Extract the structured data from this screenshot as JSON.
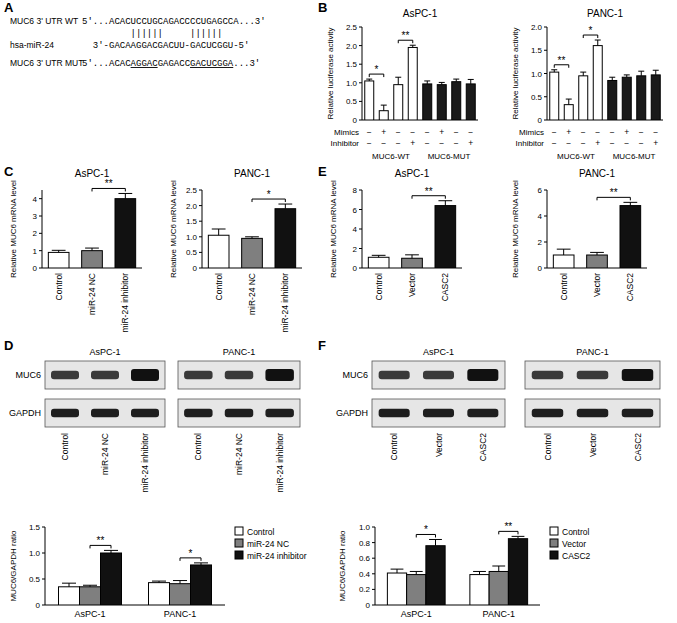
{
  "panel_labels": [
    "A",
    "B",
    "C",
    "D",
    "E",
    "F"
  ],
  "sequence": {
    "wt_label": "MUC6 3' UTR WT",
    "wt": "5'...ACACUCCUGCAGACCCCUGAGCCA...3'",
    "pairing": "       ||||||     ||||||",
    "mir_label": "hsa-miR-24",
    "mir": "3'-GACAAGGACGACUU-GACUCGGU-5'",
    "mut_label": "MUC6 3' UTR MUT",
    "mut": [
      {
        "text": "5'...ACAC"
      },
      {
        "text": "AGGAC",
        "underline": true
      },
      {
        "text": "GAGACC"
      },
      {
        "text": "GACUCGGA",
        "underline": true
      },
      {
        "text": "...3'"
      }
    ]
  },
  "blots": [
    {
      "rows": [
        "MUC6",
        "GAPDH"
      ],
      "cell_lines": [
        {
          "name": "AsPC-1",
          "lanes": [
            "Control",
            "miR-24 NC",
            "miR-24 inhibitor"
          ]
        },
        {
          "name": "PANC-1",
          "lanes": [
            "Control",
            "miR-24 NC",
            "miR-24 inhibitor"
          ]
        }
      ]
    },
    {
      "rows": [
        "MUC6",
        "GAPDH"
      ],
      "cell_lines": [
        {
          "name": "AsPC-1",
          "lanes": [
            "Control",
            "Vector",
            "CASC2"
          ]
        },
        {
          "name": "PANC-1",
          "lanes": [
            "Control",
            "Vector",
            "CASC2"
          ]
        }
      ]
    }
  ],
  "chart_data": [
    {
      "type": "bar",
      "title": "AsPC-1",
      "y_label": "Relative luciferase activity",
      "categories": [
        null,
        null,
        null,
        null,
        null,
        null,
        null,
        null
      ],
      "values": [
        1.05,
        0.25,
        0.95,
        1.95,
        0.97,
        0.95,
        1.03,
        0.97
      ],
      "errors": [
        0.05,
        0.15,
        0.2,
        0.06,
        0.08,
        0.06,
        0.07,
        0.12
      ],
      "colors": [
        "#ffffff",
        "#ffffff",
        "#ffffff",
        "#ffffff",
        "#1a1a1a",
        "#1a1a1a",
        "#1a1a1a",
        "#1a1a1a"
      ],
      "ylim": [
        0,
        2.5
      ],
      "yticks": [
        0,
        0.5,
        {
          "value": 1,
          "label": "1.0"
        },
        1.5,
        {
          "value": 2,
          "label": "2.0"
        },
        2.5
      ],
      "annotations": [
        {
          "text": "*",
          "bars": [
            0,
            1
          ]
        },
        {
          "text": "**",
          "bars": [
            2,
            3
          ]
        }
      ],
      "conditions": [
        {
          "label": "Mimics",
          "marks": [
            "−",
            "+",
            "−",
            "−",
            "−",
            "+",
            "−",
            "−"
          ]
        },
        {
          "label": "Inhibitor",
          "marks": [
            "−",
            "−",
            "−",
            "+",
            "−",
            "−",
            "−",
            "+"
          ]
        }
      ],
      "groups": [
        {
          "label": "MUC6-WT",
          "bars": [
            0,
            3
          ]
        },
        {
          "label": "MUC6-MUT",
          "bars": [
            4,
            7
          ]
        }
      ]
    },
    {
      "type": "bar",
      "title": "PANC-1",
      "y_label": "Relative luciferase activity",
      "categories": [
        null,
        null,
        null,
        null,
        null,
        null,
        null,
        null
      ],
      "values": [
        1.03,
        0.33,
        0.95,
        1.6,
        0.85,
        0.92,
        0.95,
        0.97
      ],
      "errors": [
        0.05,
        0.12,
        0.08,
        0.12,
        0.07,
        0.05,
        0.1,
        0.1
      ],
      "colors": [
        "#ffffff",
        "#ffffff",
        "#ffffff",
        "#ffffff",
        "#1a1a1a",
        "#1a1a1a",
        "#1a1a1a",
        "#1a1a1a"
      ],
      "ylim": [
        0,
        2
      ],
      "yticks": [
        0,
        0.5,
        {
          "value": 1,
          "label": "1.0"
        },
        1.5,
        {
          "value": 2,
          "label": "2.0"
        }
      ],
      "annotations": [
        {
          "text": "**",
          "bars": [
            0,
            1
          ]
        },
        {
          "text": "*",
          "bars": [
            2,
            3
          ]
        }
      ],
      "conditions": [
        {
          "label": "Mimics",
          "marks": [
            "−",
            "+",
            "−",
            "−",
            "−",
            "+",
            "−",
            "−"
          ]
        },
        {
          "label": "Inhibitor",
          "marks": [
            "−",
            "−",
            "−",
            "+",
            "−",
            "−",
            "−",
            "+"
          ]
        }
      ],
      "groups": [
        {
          "label": "MUC6-WT",
          "bars": [
            0,
            3
          ]
        },
        {
          "label": "MUC6-MUT",
          "bars": [
            4,
            7
          ]
        }
      ]
    },
    {
      "type": "bar",
      "title": "AsPC-1",
      "y_label": "Relative MUC6 mRNA level",
      "categories": [
        "Control",
        "miR-24 NC",
        "miR-24 inhibitor"
      ],
      "values": [
        0.9,
        1.0,
        4.0
      ],
      "errors": [
        0.12,
        0.15,
        0.3
      ],
      "colors": [
        "#ffffff",
        "#7f7f7f",
        "#111111"
      ],
      "ylim": [
        0,
        4.5
      ],
      "yticks": [
        0,
        1,
        2,
        3,
        4
      ],
      "annotations": [
        {
          "text": "**",
          "bars": [
            1,
            2
          ]
        }
      ]
    },
    {
      "type": "bar",
      "title": "PANC-1",
      "y_label": "Relative MUC6 mRNA level",
      "categories": [
        "Control",
        "miR-24 NC",
        "miR-24 inhibitor"
      ],
      "values": [
        1.05,
        0.95,
        1.9
      ],
      "errors": [
        0.2,
        0.05,
        0.15
      ],
      "colors": [
        "#ffffff",
        "#7f7f7f",
        "#111111"
      ],
      "ylim": [
        0,
        2.5
      ],
      "yticks": [
        0,
        0.5,
        {
          "value": 1,
          "label": "1.0"
        },
        1.5,
        {
          "value": 2,
          "label": "2.0"
        },
        2.5
      ],
      "annotations": [
        {
          "text": "*",
          "bars": [
            1,
            2
          ]
        }
      ]
    },
    {
      "type": "bar",
      "y_label": "MUC6/GAPDH ratio",
      "categories": [
        "AsPC-1",
        "PANC-1"
      ],
      "series": [
        {
          "name": "Control",
          "color": "#ffffff",
          "values": [
            0.35,
            0.43
          ],
          "errors": [
            0.07,
            0.03
          ]
        },
        {
          "name": "miR-24 NC",
          "color": "#7f7f7f",
          "values": [
            0.35,
            0.41
          ],
          "errors": [
            0.03,
            0.06
          ]
        },
        {
          "name": "miR-24 inhibitor",
          "color": "#111111",
          "values": [
            1.0,
            0.77
          ],
          "errors": [
            0.05,
            0.04
          ]
        }
      ],
      "ylim": [
        0,
        1.5
      ],
      "yticks": [
        0,
        0.5,
        {
          "value": 1,
          "label": "1.0"
        },
        1.5
      ],
      "legend": "right",
      "annotations": [
        {
          "text": "**",
          "category": 0,
          "series": [
            1,
            2
          ]
        },
        {
          "text": "*",
          "category": 1,
          "series": [
            1,
            2
          ]
        }
      ]
    },
    {
      "type": "bar",
      "title": "AsPC-1",
      "y_label": "Relative MUC6 mRNA level",
      "categories": [
        "Control",
        "Vector",
        "CASC2"
      ],
      "values": [
        1.1,
        1.0,
        6.4
      ],
      "errors": [
        0.2,
        0.35,
        0.5
      ],
      "colors": [
        "#ffffff",
        "#7f7f7f",
        "#111111"
      ],
      "ylim": [
        0,
        8
      ],
      "yticks": [
        0,
        2,
        4,
        6,
        8
      ],
      "annotations": [
        {
          "text": "**",
          "bars": [
            1,
            2
          ]
        }
      ]
    },
    {
      "type": "bar",
      "title": "PANC-1",
      "y_label": "Relative MUC6 mRNA level",
      "categories": [
        "Control",
        "Vector",
        "CASC2"
      ],
      "values": [
        1.0,
        1.0,
        4.8
      ],
      "errors": [
        0.45,
        0.2,
        0.25
      ],
      "colors": [
        "#ffffff",
        "#7f7f7f",
        "#111111"
      ],
      "ylim": [
        0,
        6
      ],
      "yticks": [
        0,
        2,
        4,
        6
      ],
      "annotations": [
        {
          "text": "**",
          "bars": [
            1,
            2
          ]
        }
      ]
    },
    {
      "type": "bar",
      "y_label": "MUC6/GAPDH ratio",
      "categories": [
        "AsPC-1",
        "PANC-1"
      ],
      "series": [
        {
          "name": "Control",
          "color": "#ffffff",
          "values": [
            0.41,
            0.39
          ],
          "errors": [
            0.05,
            0.04
          ]
        },
        {
          "name": "Vector",
          "color": "#7f7f7f",
          "values": [
            0.39,
            0.43
          ],
          "errors": [
            0.04,
            0.07
          ]
        },
        {
          "name": "CASC2",
          "color": "#111111",
          "values": [
            0.76,
            0.85
          ],
          "errors": [
            0.08,
            0.03
          ]
        }
      ],
      "ylim": [
        0,
        1
      ],
      "yticks": [
        0,
        0.2,
        0.4,
        0.6,
        0.8,
        {
          "value": 1,
          "label": "1.0"
        }
      ],
      "legend": "right",
      "annotations": [
        {
          "text": "*",
          "category": 0,
          "series": [
            1,
            2
          ]
        },
        {
          "text": "**",
          "category": 1,
          "series": [
            1,
            2
          ]
        }
      ]
    }
  ]
}
